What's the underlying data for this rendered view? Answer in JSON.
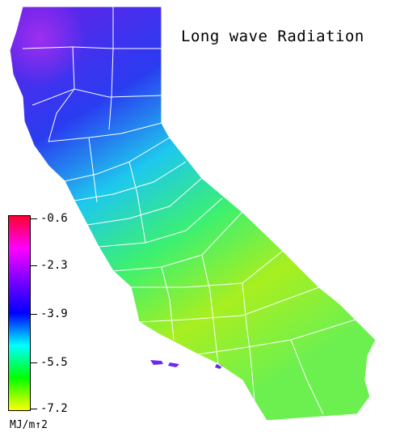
{
  "map": {
    "title": "Long wave Radiation",
    "region": "California",
    "colors": {
      "north": "#5a1fe0",
      "coast": "#9a2ae8",
      "sierra": "#1a3cf0",
      "valley": "#1ec8e8",
      "southeast": "#a6ef18",
      "desert": "#6cf03a",
      "county_lines": "#ffffff"
    }
  },
  "legend": {
    "unit": "MJ/m↑2",
    "ticks": [
      "-0.6",
      "-2.3",
      "-3.9",
      "-5.5",
      "-7.2"
    ],
    "gradient": [
      "#ff0030",
      "#ff00ff",
      "#7a00ff",
      "#0000ff",
      "#00ffff",
      "#00ff00",
      "#ffff00"
    ]
  }
}
